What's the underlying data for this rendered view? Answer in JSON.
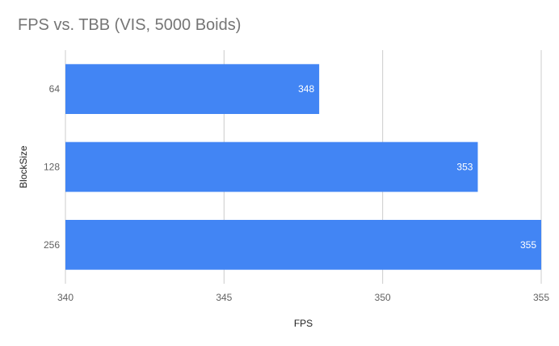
{
  "chart_data": {
    "type": "bar",
    "orientation": "horizontal",
    "title": "FPS vs. TBB (VIS, 5000 Boids)",
    "xlabel": "FPS",
    "ylabel": "BlockSize",
    "categories": [
      "64",
      "128",
      "256"
    ],
    "values": [
      348,
      353,
      355
    ],
    "data_labels": [
      "348",
      "353",
      "355"
    ],
    "xlim": [
      340,
      355
    ],
    "xticks": [
      "340",
      "345",
      "350",
      "355"
    ],
    "grid": true,
    "legend": "none",
    "bar_color": "#4285f4",
    "grid_color": "#cccccc"
  }
}
